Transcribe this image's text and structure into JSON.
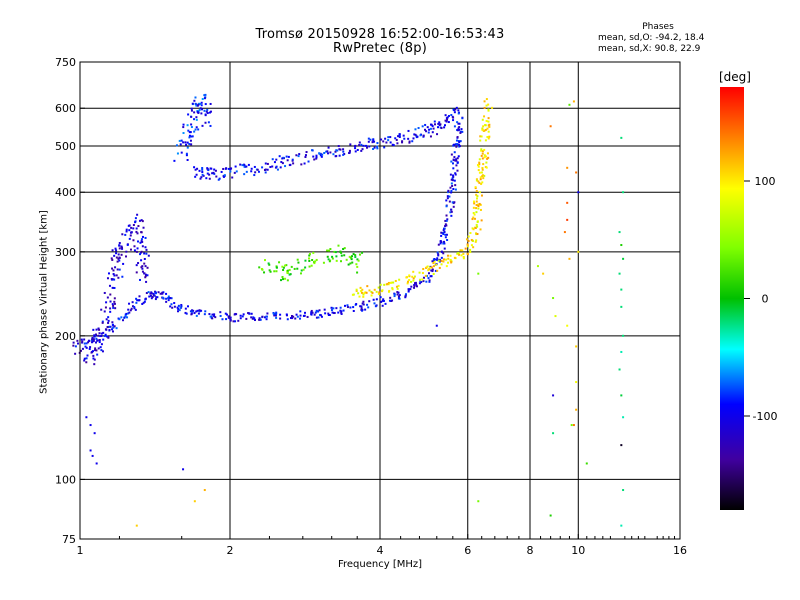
{
  "title": "Tromsø 20150928 16:52:00-16:53:43",
  "subtitle": "RwPretec (8p)",
  "stats": {
    "heading": "Phases",
    "line1": "mean, sd,O: -94.2, 18.4",
    "line2": "mean, sd,X:  90.8, 22.9"
  },
  "xlabel": "Frequency [MHz]",
  "ylabel": "Stationary phase Virtual Height [km]",
  "colorbar": {
    "unit": "[deg]",
    "ticks": [
      "100",
      "0",
      "-100"
    ],
    "tick_values": [
      100,
      0,
      -100
    ],
    "range": [
      -180,
      180
    ]
  },
  "chart_data": {
    "type": "scatter",
    "x_scale": "log",
    "y_scale": "log",
    "xlim": [
      1,
      16
    ],
    "ylim": [
      75,
      750
    ],
    "x_ticks": [
      1,
      2,
      4,
      6,
      8,
      10,
      16
    ],
    "x_tick_labels": [
      "1",
      "2",
      "4",
      "6",
      "8",
      "10",
      "16"
    ],
    "y_ticks": [
      75,
      100,
      200,
      300,
      400,
      500,
      600,
      750
    ],
    "y_tick_labels": [
      "75",
      "100",
      "200",
      "300",
      "400",
      "500",
      "600",
      "750"
    ],
    "grid": true,
    "color_by": "phase (deg)",
    "traces": [
      {
        "x": [
          1.0,
          1.1,
          1.2,
          1.3,
          1.4,
          1.5,
          1.6,
          1.8,
          2.0,
          2.4,
          3.0,
          3.5,
          4.0,
          4.5,
          5.0,
          5.3,
          5.5,
          5.6,
          5.7,
          5.8
        ],
        "y": [
          195,
          198,
          215,
          235,
          245,
          240,
          228,
          222,
          218,
          220,
          222,
          228,
          235,
          245,
          265,
          300,
          360,
          420,
          500,
          580
        ],
        "phase": -100,
        "spread": 8
      },
      {
        "x": [
          1.7,
          1.8,
          2.0,
          2.3,
          2.6,
          3.0,
          3.4,
          3.8,
          4.2,
          4.6,
          5.0,
          5.4,
          5.7
        ],
        "y": [
          440,
          435,
          440,
          450,
          465,
          480,
          495,
          505,
          515,
          525,
          540,
          560,
          600
        ],
        "phase": -100,
        "spread": 12
      },
      {
        "x": [
          3.5,
          4.0,
          4.5,
          5.0,
          5.5,
          6.0,
          6.2,
          6.3,
          6.4,
          6.5,
          6.6
        ],
        "y": [
          245,
          250,
          260,
          275,
          290,
          300,
          330,
          380,
          440,
          520,
          620
        ],
        "phase": 100,
        "spread": 10
      },
      {
        "x": [
          1.0,
          1.05,
          1.1,
          1.15,
          1.2,
          1.3,
          1.35
        ],
        "y": [
          190,
          180,
          200,
          230,
          300,
          350,
          260
        ],
        "phase": -110,
        "spread": 15
      },
      {
        "x": [
          1.6,
          1.65,
          1.7,
          1.75,
          1.8
        ],
        "y": [
          480,
          520,
          600,
          620,
          560
        ],
        "phase": -90,
        "spread": 15
      },
      {
        "x": [
          2.3,
          2.6,
          3.0,
          3.4,
          3.7
        ],
        "y": [
          280,
          270,
          290,
          300,
          280
        ],
        "phase": 20,
        "spread": 15
      }
    ],
    "points": [
      {
        "x": 1.03,
        "y": 135,
        "phase": -100
      },
      {
        "x": 1.05,
        "y": 130,
        "phase": -100
      },
      {
        "x": 1.07,
        "y": 125,
        "phase": -100
      },
      {
        "x": 1.06,
        "y": 112,
        "phase": -100
      },
      {
        "x": 1.08,
        "y": 108,
        "phase": -100
      },
      {
        "x": 1.05,
        "y": 115,
        "phase": -100
      },
      {
        "x": 1.61,
        "y": 105,
        "phase": -100
      },
      {
        "x": 1.7,
        "y": 90,
        "phase": 110
      },
      {
        "x": 1.78,
        "y": 95,
        "phase": 120
      },
      {
        "x": 1.3,
        "y": 80,
        "phase": 110
      },
      {
        "x": 6.3,
        "y": 90,
        "phase": 40
      },
      {
        "x": 6.3,
        "y": 270,
        "phase": 40
      },
      {
        "x": 5.2,
        "y": 210,
        "phase": -100
      },
      {
        "x": 9.6,
        "y": 610,
        "phase": 30
      },
      {
        "x": 9.8,
        "y": 620,
        "phase": 120
      },
      {
        "x": 8.8,
        "y": 550,
        "phase": 140
      },
      {
        "x": 9.5,
        "y": 450,
        "phase": 130
      },
      {
        "x": 9.9,
        "y": 440,
        "phase": 140
      },
      {
        "x": 9.5,
        "y": 380,
        "phase": 150
      },
      {
        "x": 9.5,
        "y": 350,
        "phase": 160
      },
      {
        "x": 9.4,
        "y": 330,
        "phase": 140
      },
      {
        "x": 10.0,
        "y": 400,
        "phase": -100
      },
      {
        "x": 10.0,
        "y": 300,
        "phase": 100
      },
      {
        "x": 9.6,
        "y": 290,
        "phase": 120
      },
      {
        "x": 8.5,
        "y": 270,
        "phase": 110
      },
      {
        "x": 8.3,
        "y": 280,
        "phase": 60
      },
      {
        "x": 8.9,
        "y": 240,
        "phase": 40
      },
      {
        "x": 9.0,
        "y": 220,
        "phase": 80
      },
      {
        "x": 9.5,
        "y": 210,
        "phase": 90
      },
      {
        "x": 9.9,
        "y": 190,
        "phase": 110
      },
      {
        "x": 9.9,
        "y": 160,
        "phase": 90
      },
      {
        "x": 9.9,
        "y": 140,
        "phase": 120
      },
      {
        "x": 9.8,
        "y": 130,
        "phase": 140
      },
      {
        "x": 8.9,
        "y": 150,
        "phase": -110
      },
      {
        "x": 8.9,
        "y": 125,
        "phase": -20
      },
      {
        "x": 9.7,
        "y": 130,
        "phase": 40
      },
      {
        "x": 10.4,
        "y": 108,
        "phase": 20
      },
      {
        "x": 8.8,
        "y": 84,
        "phase": 10
      },
      {
        "x": 12.2,
        "y": 520,
        "phase": -20
      },
      {
        "x": 12.3,
        "y": 400,
        "phase": -20
      },
      {
        "x": 12.1,
        "y": 330,
        "phase": -20
      },
      {
        "x": 12.2,
        "y": 310,
        "phase": 10
      },
      {
        "x": 12.3,
        "y": 290,
        "phase": -10
      },
      {
        "x": 12.1,
        "y": 270,
        "phase": -20
      },
      {
        "x": 12.2,
        "y": 250,
        "phase": -20
      },
      {
        "x": 12.2,
        "y": 230,
        "phase": -20
      },
      {
        "x": 12.3,
        "y": 200,
        "phase": -20
      },
      {
        "x": 12.2,
        "y": 185,
        "phase": -30
      },
      {
        "x": 12.1,
        "y": 170,
        "phase": -20
      },
      {
        "x": 12.2,
        "y": 150,
        "phase": -10
      },
      {
        "x": 12.3,
        "y": 135,
        "phase": -30
      },
      {
        "x": 12.2,
        "y": 118,
        "phase": -170
      },
      {
        "x": 12.3,
        "y": 95,
        "phase": -20
      },
      {
        "x": 12.2,
        "y": 80,
        "phase": -30
      }
    ]
  }
}
